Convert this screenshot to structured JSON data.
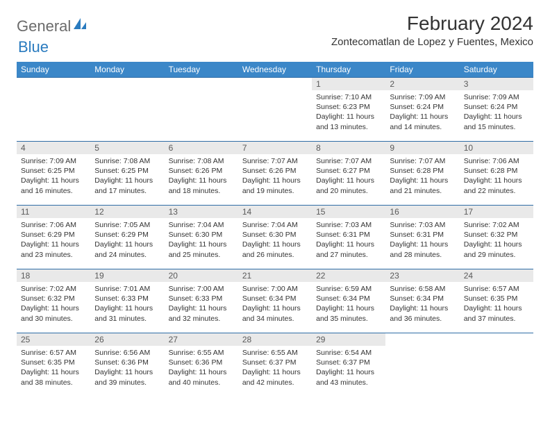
{
  "brand": {
    "part1": "General",
    "part2": "Blue"
  },
  "title": "February 2024",
  "location": "Zontecomatlan de Lopez y Fuentes, Mexico",
  "colors": {
    "header_bg": "#3b87c8",
    "header_text": "#ffffff",
    "daynum_bg": "#e9e9e9",
    "daynum_text": "#5a5a5a",
    "rule": "#2e6ca6",
    "brand_gray": "#6b6b6b",
    "brand_blue": "#2a7bbf"
  },
  "weekdays": [
    "Sunday",
    "Monday",
    "Tuesday",
    "Wednesday",
    "Thursday",
    "Friday",
    "Saturday"
  ],
  "weeks": [
    [
      null,
      null,
      null,
      null,
      {
        "n": "1",
        "lines": [
          "Sunrise: 7:10 AM",
          "Sunset: 6:23 PM",
          "Daylight: 11 hours",
          "and 13 minutes."
        ]
      },
      {
        "n": "2",
        "lines": [
          "Sunrise: 7:09 AM",
          "Sunset: 6:24 PM",
          "Daylight: 11 hours",
          "and 14 minutes."
        ]
      },
      {
        "n": "3",
        "lines": [
          "Sunrise: 7:09 AM",
          "Sunset: 6:24 PM",
          "Daylight: 11 hours",
          "and 15 minutes."
        ]
      }
    ],
    [
      {
        "n": "4",
        "lines": [
          "Sunrise: 7:09 AM",
          "Sunset: 6:25 PM",
          "Daylight: 11 hours",
          "and 16 minutes."
        ]
      },
      {
        "n": "5",
        "lines": [
          "Sunrise: 7:08 AM",
          "Sunset: 6:25 PM",
          "Daylight: 11 hours",
          "and 17 minutes."
        ]
      },
      {
        "n": "6",
        "lines": [
          "Sunrise: 7:08 AM",
          "Sunset: 6:26 PM",
          "Daylight: 11 hours",
          "and 18 minutes."
        ]
      },
      {
        "n": "7",
        "lines": [
          "Sunrise: 7:07 AM",
          "Sunset: 6:26 PM",
          "Daylight: 11 hours",
          "and 19 minutes."
        ]
      },
      {
        "n": "8",
        "lines": [
          "Sunrise: 7:07 AM",
          "Sunset: 6:27 PM",
          "Daylight: 11 hours",
          "and 20 minutes."
        ]
      },
      {
        "n": "9",
        "lines": [
          "Sunrise: 7:07 AM",
          "Sunset: 6:28 PM",
          "Daylight: 11 hours",
          "and 21 minutes."
        ]
      },
      {
        "n": "10",
        "lines": [
          "Sunrise: 7:06 AM",
          "Sunset: 6:28 PM",
          "Daylight: 11 hours",
          "and 22 minutes."
        ]
      }
    ],
    [
      {
        "n": "11",
        "lines": [
          "Sunrise: 7:06 AM",
          "Sunset: 6:29 PM",
          "Daylight: 11 hours",
          "and 23 minutes."
        ]
      },
      {
        "n": "12",
        "lines": [
          "Sunrise: 7:05 AM",
          "Sunset: 6:29 PM",
          "Daylight: 11 hours",
          "and 24 minutes."
        ]
      },
      {
        "n": "13",
        "lines": [
          "Sunrise: 7:04 AM",
          "Sunset: 6:30 PM",
          "Daylight: 11 hours",
          "and 25 minutes."
        ]
      },
      {
        "n": "14",
        "lines": [
          "Sunrise: 7:04 AM",
          "Sunset: 6:30 PM",
          "Daylight: 11 hours",
          "and 26 minutes."
        ]
      },
      {
        "n": "15",
        "lines": [
          "Sunrise: 7:03 AM",
          "Sunset: 6:31 PM",
          "Daylight: 11 hours",
          "and 27 minutes."
        ]
      },
      {
        "n": "16",
        "lines": [
          "Sunrise: 7:03 AM",
          "Sunset: 6:31 PM",
          "Daylight: 11 hours",
          "and 28 minutes."
        ]
      },
      {
        "n": "17",
        "lines": [
          "Sunrise: 7:02 AM",
          "Sunset: 6:32 PM",
          "Daylight: 11 hours",
          "and 29 minutes."
        ]
      }
    ],
    [
      {
        "n": "18",
        "lines": [
          "Sunrise: 7:02 AM",
          "Sunset: 6:32 PM",
          "Daylight: 11 hours",
          "and 30 minutes."
        ]
      },
      {
        "n": "19",
        "lines": [
          "Sunrise: 7:01 AM",
          "Sunset: 6:33 PM",
          "Daylight: 11 hours",
          "and 31 minutes."
        ]
      },
      {
        "n": "20",
        "lines": [
          "Sunrise: 7:00 AM",
          "Sunset: 6:33 PM",
          "Daylight: 11 hours",
          "and 32 minutes."
        ]
      },
      {
        "n": "21",
        "lines": [
          "Sunrise: 7:00 AM",
          "Sunset: 6:34 PM",
          "Daylight: 11 hours",
          "and 34 minutes."
        ]
      },
      {
        "n": "22",
        "lines": [
          "Sunrise: 6:59 AM",
          "Sunset: 6:34 PM",
          "Daylight: 11 hours",
          "and 35 minutes."
        ]
      },
      {
        "n": "23",
        "lines": [
          "Sunrise: 6:58 AM",
          "Sunset: 6:34 PM",
          "Daylight: 11 hours",
          "and 36 minutes."
        ]
      },
      {
        "n": "24",
        "lines": [
          "Sunrise: 6:57 AM",
          "Sunset: 6:35 PM",
          "Daylight: 11 hours",
          "and 37 minutes."
        ]
      }
    ],
    [
      {
        "n": "25",
        "lines": [
          "Sunrise: 6:57 AM",
          "Sunset: 6:35 PM",
          "Daylight: 11 hours",
          "and 38 minutes."
        ]
      },
      {
        "n": "26",
        "lines": [
          "Sunrise: 6:56 AM",
          "Sunset: 6:36 PM",
          "Daylight: 11 hours",
          "and 39 minutes."
        ]
      },
      {
        "n": "27",
        "lines": [
          "Sunrise: 6:55 AM",
          "Sunset: 6:36 PM",
          "Daylight: 11 hours",
          "and 40 minutes."
        ]
      },
      {
        "n": "28",
        "lines": [
          "Sunrise: 6:55 AM",
          "Sunset: 6:37 PM",
          "Daylight: 11 hours",
          "and 42 minutes."
        ]
      },
      {
        "n": "29",
        "lines": [
          "Sunrise: 6:54 AM",
          "Sunset: 6:37 PM",
          "Daylight: 11 hours",
          "and 43 minutes."
        ]
      },
      null,
      null
    ]
  ]
}
